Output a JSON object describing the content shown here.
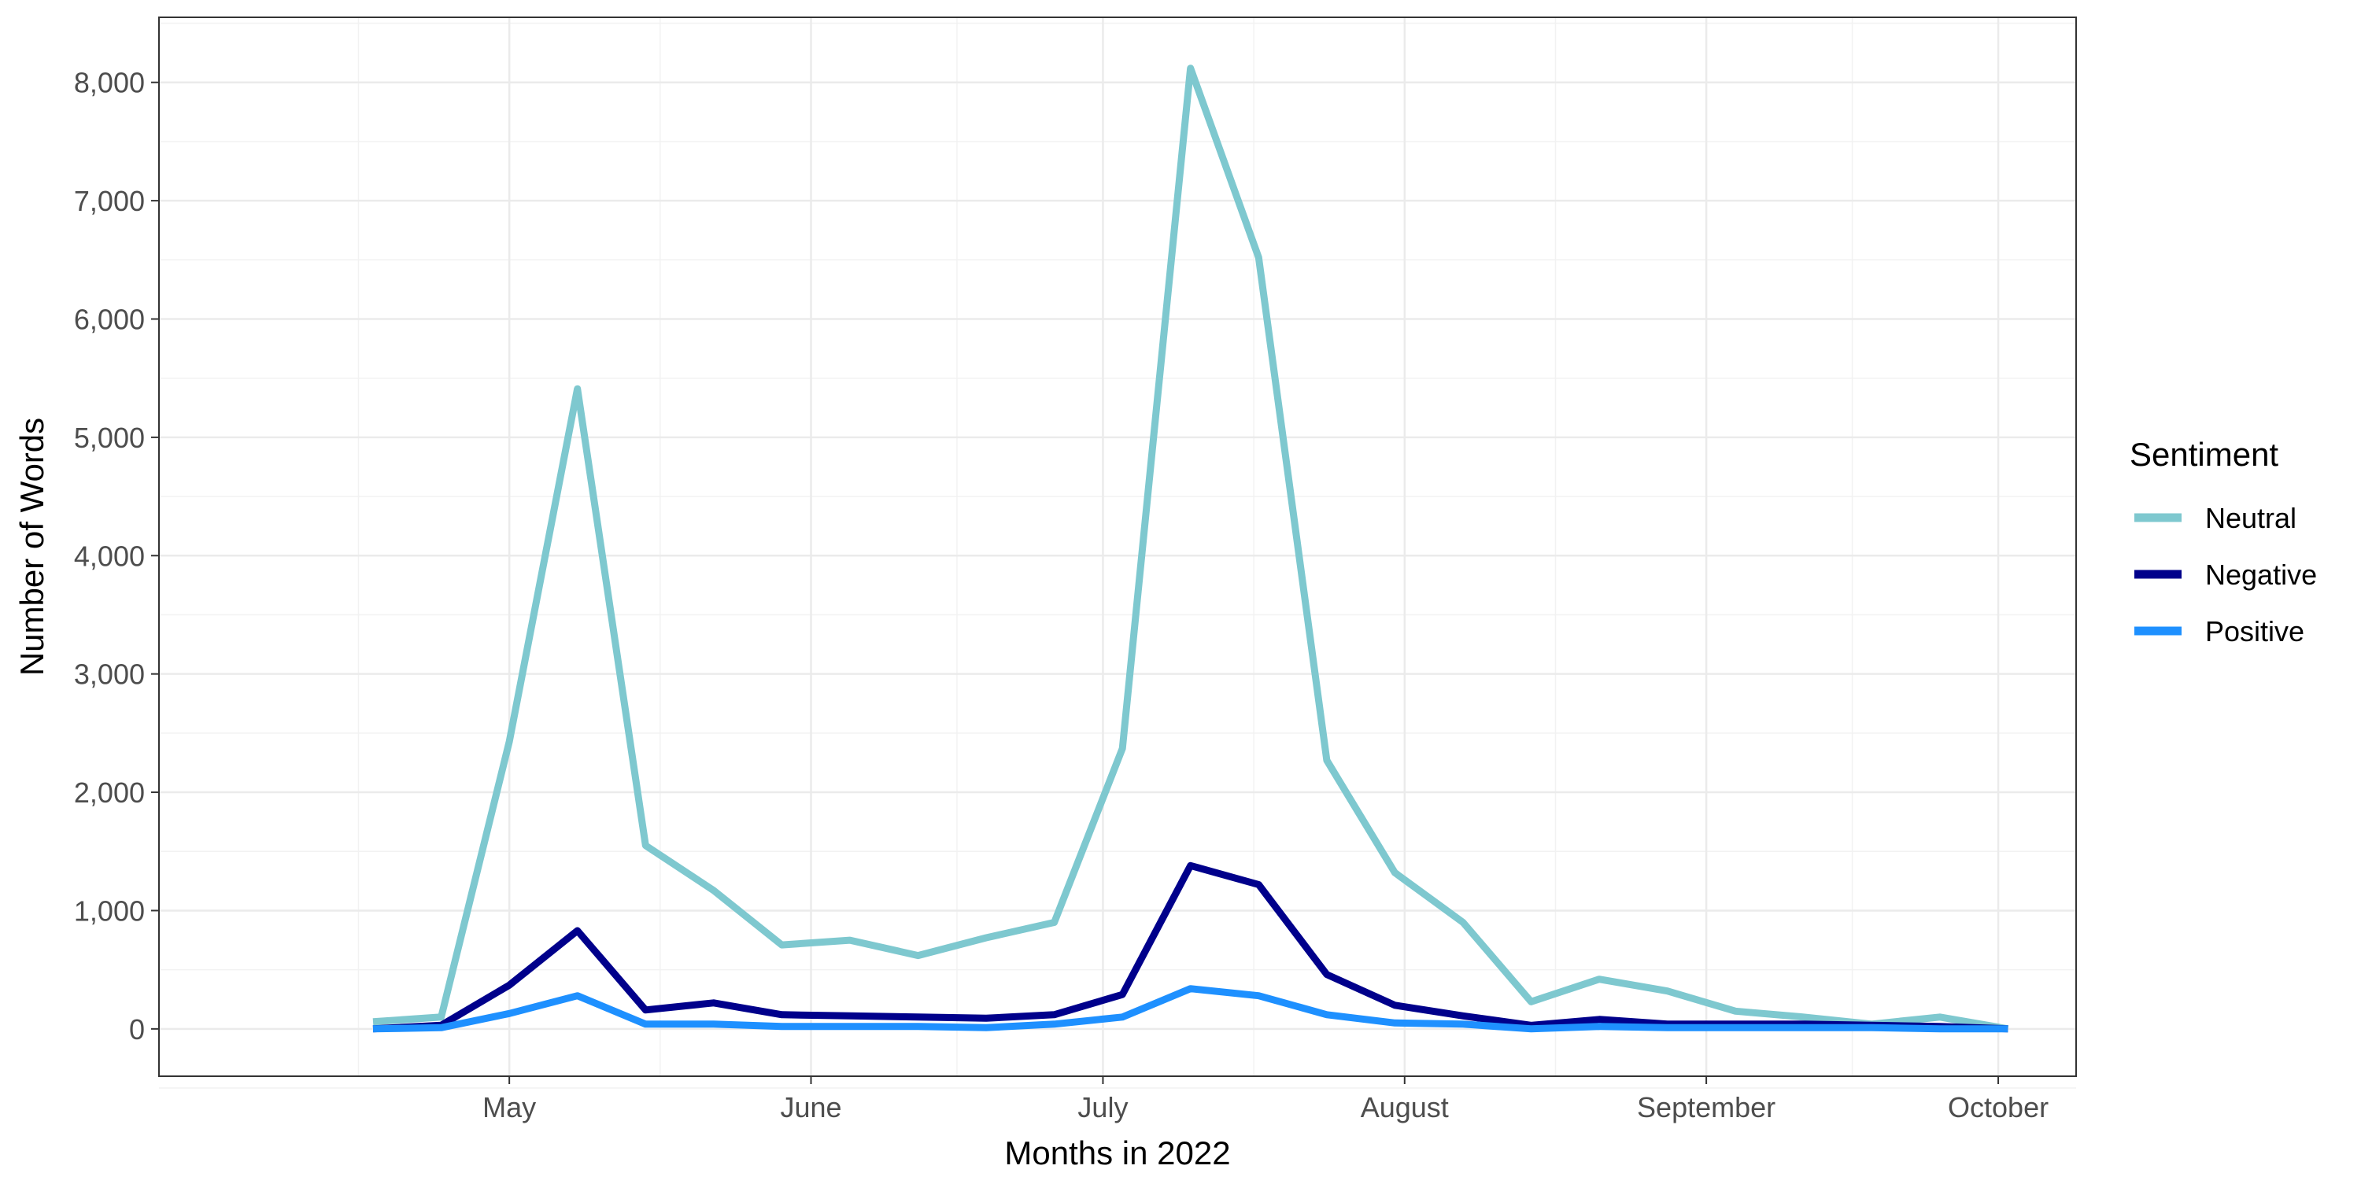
{
  "chart_data": {
    "type": "line",
    "xlabel": "Months in 2022",
    "ylabel": "Number of Words",
    "x_tick_labels": [
      "May",
      "June",
      "July",
      "August",
      "September",
      "October"
    ],
    "x_tick_dates": [
      "2022-05-01",
      "2022-06-01",
      "2022-07-01",
      "2022-08-01",
      "2022-09-01",
      "2022-10-01"
    ],
    "y_tick_labels": [
      "0",
      "1,000",
      "2,000",
      "3,000",
      "4,000",
      "5,000",
      "6,000",
      "7,000",
      "8,000"
    ],
    "ylim": [
      -400,
      8550
    ],
    "xlim": [
      "2022-03-26",
      "2022-10-09"
    ],
    "grid": true,
    "legend": {
      "title": "Sentiment",
      "position": "right",
      "entries": [
        "Neutral",
        "Negative",
        "Positive"
      ]
    },
    "x": [
      "2022-04-17",
      "2022-04-24",
      "2022-05-01",
      "2022-05-08",
      "2022-05-15",
      "2022-05-22",
      "2022-05-29",
      "2022-06-05",
      "2022-06-12",
      "2022-06-19",
      "2022-06-26",
      "2022-07-03",
      "2022-07-10",
      "2022-07-17",
      "2022-07-24",
      "2022-07-31",
      "2022-08-07",
      "2022-08-14",
      "2022-08-21",
      "2022-08-28",
      "2022-09-04",
      "2022-09-11",
      "2022-09-18",
      "2022-09-25",
      "2022-10-02"
    ],
    "series": [
      {
        "name": "Neutral",
        "color": "#7ec8cf",
        "values": [
          60,
          100,
          2430,
          5410,
          1550,
          1170,
          710,
          750,
          620,
          770,
          900,
          2370,
          8120,
          6520,
          2270,
          1320,
          900,
          230,
          420,
          320,
          150,
          100,
          40,
          100,
          0
        ]
      },
      {
        "name": "Negative",
        "color": "#00008b",
        "values": [
          0,
          30,
          370,
          830,
          160,
          220,
          120,
          110,
          100,
          90,
          120,
          290,
          1380,
          1220,
          460,
          200,
          110,
          30,
          80,
          40,
          40,
          40,
          30,
          20,
          0
        ]
      },
      {
        "name": "Positive",
        "color": "#1e90ff",
        "values": [
          0,
          10,
          130,
          280,
          40,
          40,
          20,
          20,
          20,
          10,
          40,
          100,
          340,
          280,
          120,
          50,
          40,
          0,
          20,
          10,
          10,
          10,
          10,
          0,
          0
        ]
      }
    ]
  }
}
